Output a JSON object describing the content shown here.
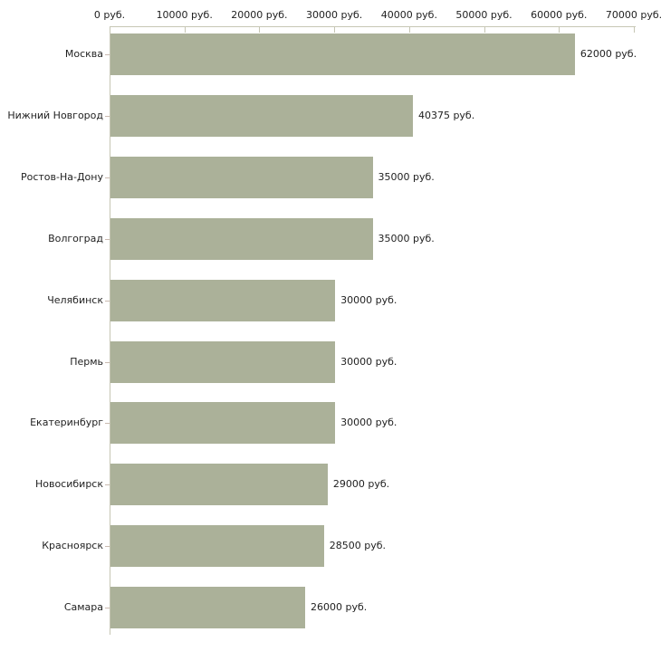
{
  "chart_data": {
    "type": "bar",
    "orientation": "horizontal",
    "title": "",
    "categories": [
      "Москва",
      "Нижний Новгород",
      "Ростов-На-Дону",
      "Волгоград",
      "Челябинск",
      "Пермь",
      "Екатеринбург",
      "Новосибирск",
      "Красноярск",
      "Самара"
    ],
    "values": [
      62000,
      40375,
      35000,
      35000,
      30000,
      30000,
      30000,
      29000,
      28500,
      26000
    ],
    "value_labels": [
      "62000 руб.",
      "40375 руб.",
      "35000 руб.",
      "35000 руб.",
      "30000 руб.",
      "30000 руб.",
      "30000 руб.",
      "29000 руб.",
      "28500 руб.",
      "26000 руб."
    ],
    "x_axis": {
      "position": "top",
      "xlim": [
        0,
        70000
      ],
      "tick_values": [
        0,
        10000,
        20000,
        30000,
        40000,
        50000,
        60000,
        70000
      ],
      "tick_labels": [
        "0 руб.",
        "10000 руб.",
        "20000 руб.",
        "30000 руб.",
        "40000 руб.",
        "50000 руб.",
        "60000 руб.",
        "70000 руб."
      ]
    },
    "grid": false,
    "legend": false,
    "colors": {
      "bar": "#abb199",
      "axis_line": "#c6c6b4",
      "category_tick": "#c9b9af",
      "text": "#222222",
      "background": "#ffffff"
    }
  }
}
